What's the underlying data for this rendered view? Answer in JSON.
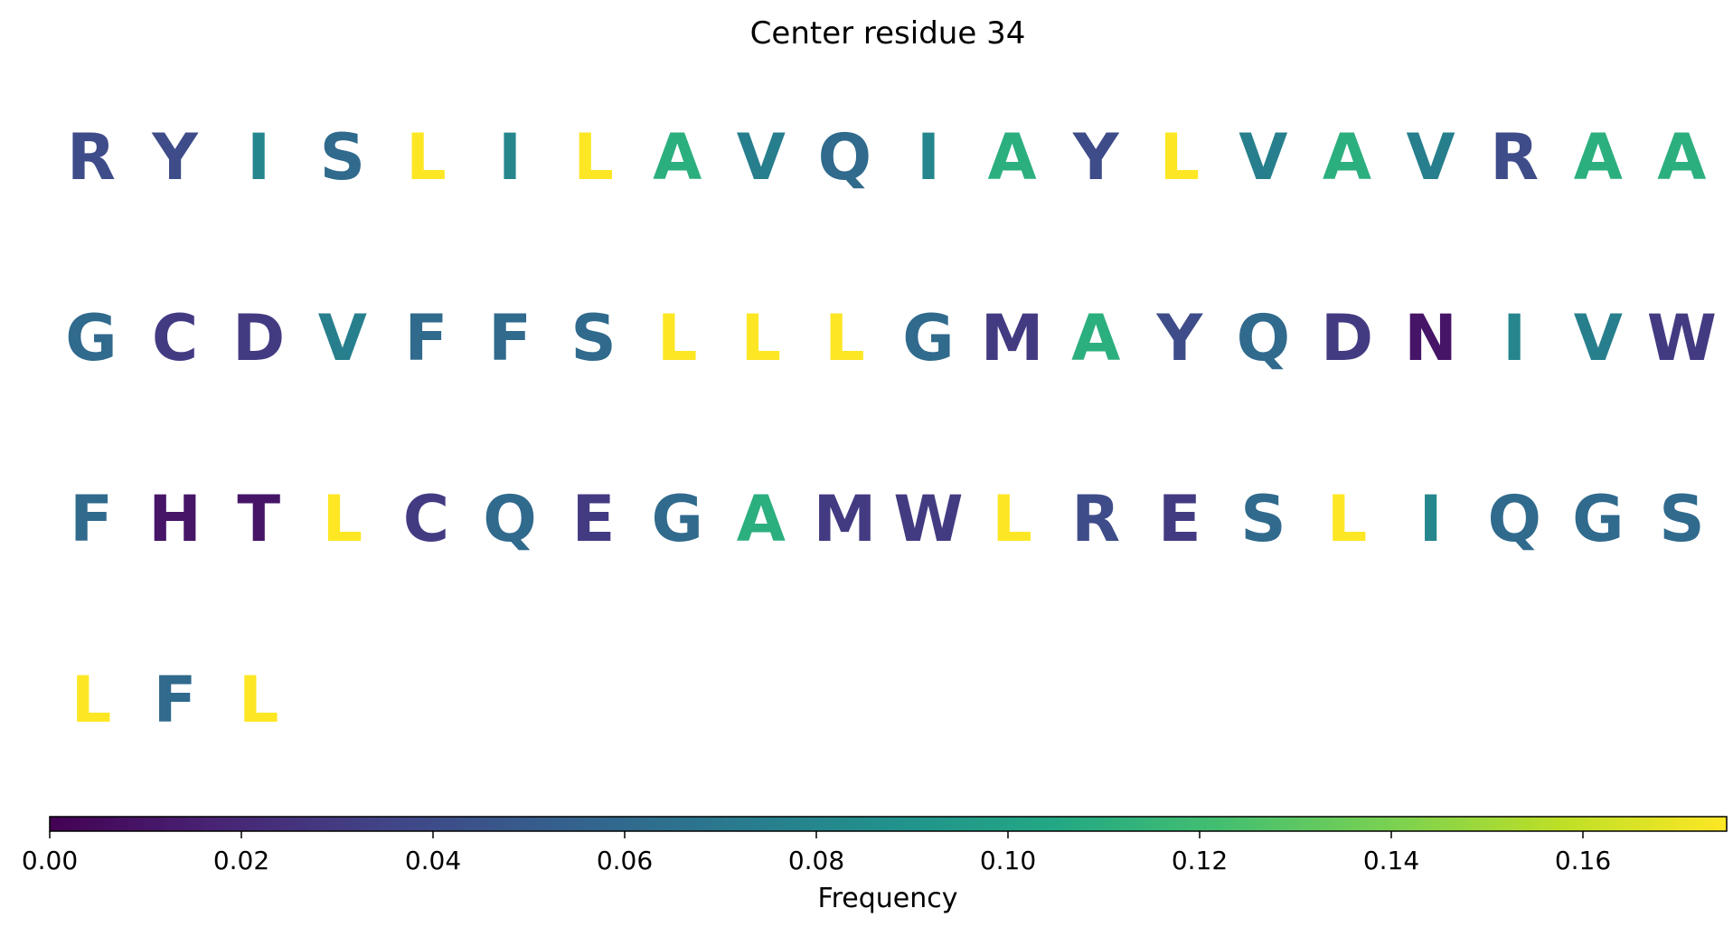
{
  "chart_data": {
    "type": "table",
    "title": "Center residue 34",
    "residues": [
      {
        "letter": "R",
        "frequency": 0.04
      },
      {
        "letter": "Y",
        "frequency": 0.04
      },
      {
        "letter": "I",
        "frequency": 0.08
      },
      {
        "letter": "S",
        "frequency": 0.06
      },
      {
        "letter": "L",
        "frequency": 0.175
      },
      {
        "letter": "I",
        "frequency": 0.08
      },
      {
        "letter": "L",
        "frequency": 0.175
      },
      {
        "letter": "A",
        "frequency": 0.11
      },
      {
        "letter": "V",
        "frequency": 0.075
      },
      {
        "letter": "Q",
        "frequency": 0.06
      },
      {
        "letter": "I",
        "frequency": 0.08
      },
      {
        "letter": "A",
        "frequency": 0.11
      },
      {
        "letter": "Y",
        "frequency": 0.04
      },
      {
        "letter": "L",
        "frequency": 0.175
      },
      {
        "letter": "V",
        "frequency": 0.075
      },
      {
        "letter": "A",
        "frequency": 0.11
      },
      {
        "letter": "V",
        "frequency": 0.075
      },
      {
        "letter": "R",
        "frequency": 0.04
      },
      {
        "letter": "A",
        "frequency": 0.11
      },
      {
        "letter": "A",
        "frequency": 0.11
      },
      {
        "letter": "G",
        "frequency": 0.06
      },
      {
        "letter": "C",
        "frequency": 0.03
      },
      {
        "letter": "D",
        "frequency": 0.03
      },
      {
        "letter": "V",
        "frequency": 0.075
      },
      {
        "letter": "F",
        "frequency": 0.06
      },
      {
        "letter": "F",
        "frequency": 0.06
      },
      {
        "letter": "S",
        "frequency": 0.06
      },
      {
        "letter": "L",
        "frequency": 0.175
      },
      {
        "letter": "L",
        "frequency": 0.175
      },
      {
        "letter": "L",
        "frequency": 0.175
      },
      {
        "letter": "G",
        "frequency": 0.06
      },
      {
        "letter": "M",
        "frequency": 0.03
      },
      {
        "letter": "A",
        "frequency": 0.11
      },
      {
        "letter": "Y",
        "frequency": 0.04
      },
      {
        "letter": "Q",
        "frequency": 0.06
      },
      {
        "letter": "D",
        "frequency": 0.03
      },
      {
        "letter": "N",
        "frequency": 0.01
      },
      {
        "letter": "I",
        "frequency": 0.08
      },
      {
        "letter": "V",
        "frequency": 0.075
      },
      {
        "letter": "W",
        "frequency": 0.03
      },
      {
        "letter": "F",
        "frequency": 0.06
      },
      {
        "letter": "H",
        "frequency": 0.01
      },
      {
        "letter": "T",
        "frequency": 0.01
      },
      {
        "letter": "L",
        "frequency": 0.175
      },
      {
        "letter": "C",
        "frequency": 0.03
      },
      {
        "letter": "Q",
        "frequency": 0.06
      },
      {
        "letter": "E",
        "frequency": 0.03
      },
      {
        "letter": "G",
        "frequency": 0.06
      },
      {
        "letter": "A",
        "frequency": 0.11
      },
      {
        "letter": "M",
        "frequency": 0.03
      },
      {
        "letter": "W",
        "frequency": 0.03
      },
      {
        "letter": "L",
        "frequency": 0.175
      },
      {
        "letter": "R",
        "frequency": 0.04
      },
      {
        "letter": "E",
        "frequency": 0.03
      },
      {
        "letter": "S",
        "frequency": 0.06
      },
      {
        "letter": "L",
        "frequency": 0.175
      },
      {
        "letter": "I",
        "frequency": 0.08
      },
      {
        "letter": "Q",
        "frequency": 0.06
      },
      {
        "letter": "G",
        "frequency": 0.06
      },
      {
        "letter": "S",
        "frequency": 0.06
      },
      {
        "letter": "L",
        "frequency": 0.175
      },
      {
        "letter": "F",
        "frequency": 0.06
      },
      {
        "letter": "L",
        "frequency": 0.175
      }
    ],
    "colorbar": {
      "label": "Frequency",
      "range": [
        0,
        0.175
      ],
      "ticks": [
        0.0,
        0.02,
        0.04,
        0.06,
        0.08,
        0.1,
        0.12,
        0.14,
        0.16
      ],
      "tick_labels": [
        "0.00",
        "0.02",
        "0.04",
        "0.06",
        "0.08",
        "0.10",
        "0.12",
        "0.14",
        "0.16"
      ],
      "colormap": "viridis"
    }
  }
}
